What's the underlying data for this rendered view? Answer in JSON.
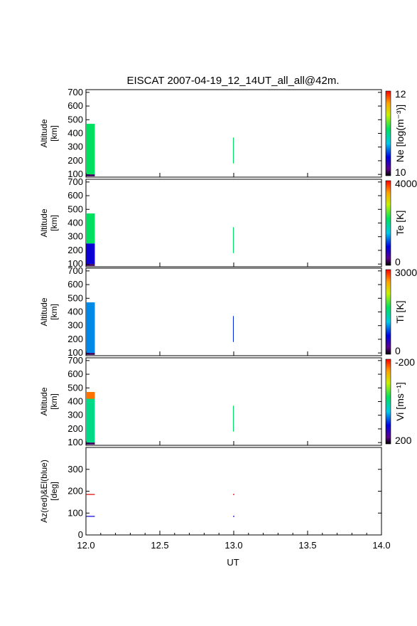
{
  "title": "EISCAT 2007-04-19_12_14UT_all_all@42m.",
  "xlabel": "UT",
  "x_ticks": [
    "12.0",
    "12.5",
    "13.0",
    "13.5",
    "14.0"
  ],
  "chart_data": [
    {
      "type": "heatmap",
      "ylabel_1": "Altitude",
      "ylabel_2": "[km]",
      "y_ticks": [
        "100",
        "200",
        "300",
        "400",
        "500",
        "600",
        "700"
      ],
      "ylim": [
        80,
        720
      ],
      "colorbar_label": "Ne [log(m⁻³)]",
      "colorbar_range": [
        "10",
        "12"
      ],
      "data_blocks": [
        {
          "t": [
            12.0,
            12.06
          ],
          "alt": [
            100,
            470
          ],
          "level": 0.55
        },
        {
          "t": [
            12.0,
            12.06
          ],
          "alt": [
            86,
            100
          ],
          "level": 0.05
        },
        {
          "t": [
            12.995,
            13.0
          ],
          "alt": [
            180,
            370
          ],
          "level": 0.55
        }
      ]
    },
    {
      "type": "heatmap",
      "ylabel_1": "Altitude",
      "ylabel_2": "[km]",
      "y_ticks": [
        "100",
        "200",
        "300",
        "400",
        "500",
        "600",
        "700"
      ],
      "ylim": [
        80,
        720
      ],
      "colorbar_label": "Te [K]",
      "colorbar_range": [
        "0",
        "4000"
      ],
      "data_blocks": [
        {
          "t": [
            12.0,
            12.06
          ],
          "alt": [
            250,
            470
          ],
          "level": 0.55
        },
        {
          "t": [
            12.0,
            12.06
          ],
          "alt": [
            100,
            250
          ],
          "level": 0.2
        },
        {
          "t": [
            12.0,
            12.06
          ],
          "alt": [
            86,
            100
          ],
          "level": 0.05
        },
        {
          "t": [
            12.995,
            13.0
          ],
          "alt": [
            180,
            370
          ],
          "level": 0.55
        }
      ]
    },
    {
      "type": "heatmap",
      "ylabel_1": "Altitude",
      "ylabel_2": "[km]",
      "y_ticks": [
        "100",
        "200",
        "300",
        "400",
        "500",
        "600",
        "700"
      ],
      "ylim": [
        80,
        720
      ],
      "colorbar_label": "Ti [K]",
      "colorbar_range": [
        "0",
        "3000"
      ],
      "data_blocks": [
        {
          "t": [
            12.0,
            12.06
          ],
          "alt": [
            100,
            470
          ],
          "level": 0.33
        },
        {
          "t": [
            12.0,
            12.06
          ],
          "alt": [
            86,
            100
          ],
          "level": 0.05
        },
        {
          "t": [
            12.995,
            13.0
          ],
          "alt": [
            180,
            370
          ],
          "level": 0.25
        }
      ]
    },
    {
      "type": "heatmap",
      "ylabel_1": "Altitude",
      "ylabel_2": "[km]",
      "y_ticks": [
        "100",
        "200",
        "300",
        "400",
        "500",
        "600",
        "700"
      ],
      "ylim": [
        80,
        720
      ],
      "colorbar_label": "Vi [ms⁻¹]",
      "colorbar_range": [
        "200",
        "-200"
      ],
      "data_blocks": [
        {
          "t": [
            12.0,
            12.06
          ],
          "alt": [
            100,
            470
          ],
          "level": 0.5
        },
        {
          "t": [
            12.0,
            12.06
          ],
          "alt": [
            420,
            470
          ],
          "level": 0.9
        },
        {
          "t": [
            12.0,
            12.06
          ],
          "alt": [
            86,
            100
          ],
          "level": 0.05
        },
        {
          "t": [
            12.995,
            13.0
          ],
          "alt": [
            180,
            370
          ],
          "level": 0.55
        }
      ]
    },
    {
      "type": "line",
      "ylabel_1": "Az(red)&El(blue)",
      "ylabel_2": "[deg]",
      "y_ticks": [
        "0",
        "100",
        "200",
        "300"
      ],
      "ylim": [
        0,
        400
      ],
      "series": [
        {
          "color": "#e00000",
          "segments": [
            {
              "t": [
                12.0,
                12.06
              ],
              "value": 185
            },
            {
              "t": [
                12.995,
                13.0
              ],
              "value": 185
            }
          ]
        },
        {
          "color": "#0000d0",
          "segments": [
            {
              "t": [
                12.0,
                12.06
              ],
              "value": 85
            },
            {
              "t": [
                12.995,
                13.0
              ],
              "value": 85
            }
          ]
        }
      ]
    }
  ],
  "xlim": [
    12.0,
    14.0
  ]
}
